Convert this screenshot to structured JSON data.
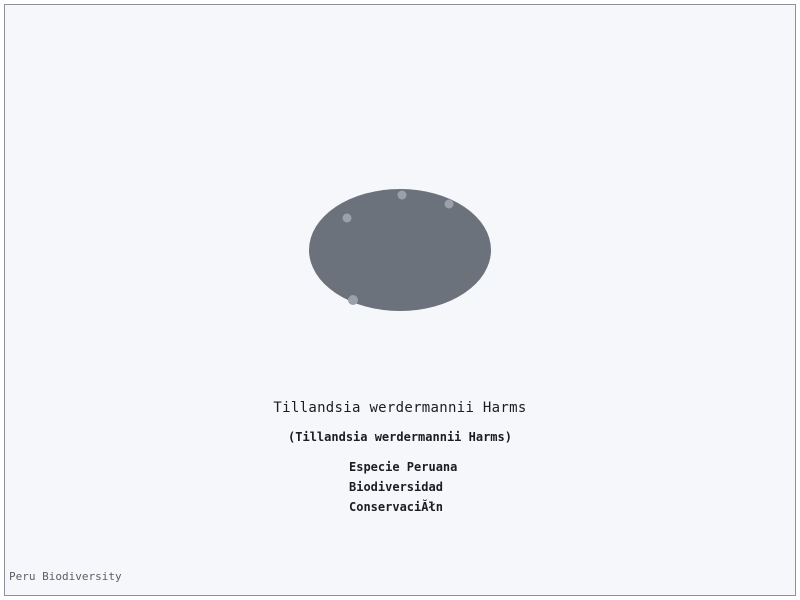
{
  "species": {
    "name": "Tillandsia werdermannii Harms",
    "scientific_name": "(Tillandsia werdermannii Harms)"
  },
  "tags": [
    "Especie Peruana",
    "Biodiversidad",
    "ConservaciĂłn"
  ],
  "footer": {
    "credit": "Peru Biodiversity"
  },
  "colors": {
    "background": "#f5f7fa",
    "border": "#8a9199",
    "ellipse": "#6b727c",
    "dots": "#9aa1aa",
    "text": "#1a1d22",
    "footer_text": "#5a6068"
  }
}
